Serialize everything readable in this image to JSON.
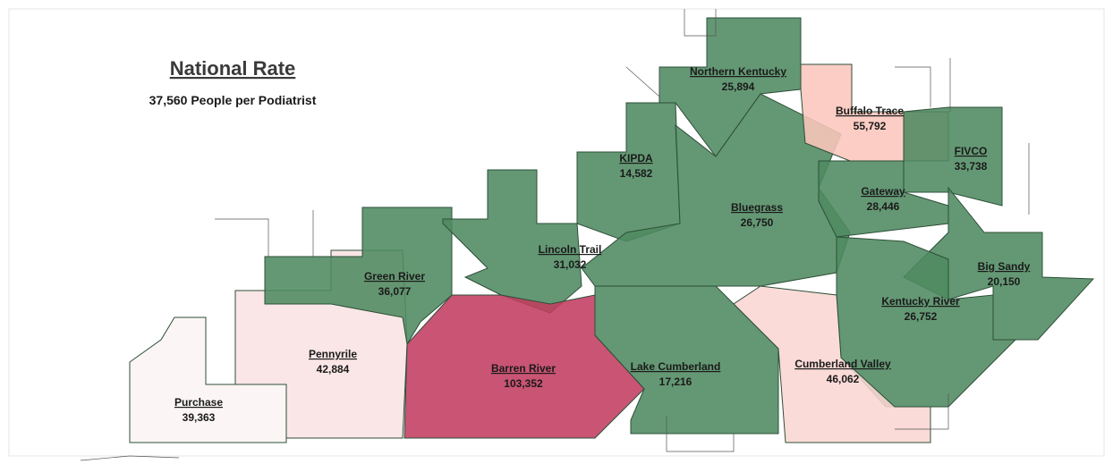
{
  "title": "National Rate",
  "subtitle": "37,560 People per Podiatrist",
  "regions": [
    {
      "name": "Purchase",
      "value": "39,363",
      "color": "#fbf4f4"
    },
    {
      "name": "Pennyrile",
      "value": "42,884",
      "color": "#f9e3e3"
    },
    {
      "name": "Green River",
      "value": "36,077",
      "color": "#4f8a61"
    },
    {
      "name": "Barren River",
      "value": "103,352",
      "color": "#c23c60"
    },
    {
      "name": "Lincoln Trail",
      "value": "31,032",
      "color": "#4f8a61"
    },
    {
      "name": "KIPDA",
      "value": "14,582",
      "color": "#4f8a61"
    },
    {
      "name": "Northern Kentucky",
      "value": "25,894",
      "color": "#4f8a61"
    },
    {
      "name": "Bluegrass",
      "value": "26,750",
      "color": "#4f8a61"
    },
    {
      "name": "Buffalo Trace",
      "value": "55,792",
      "color": "#fac6bc"
    },
    {
      "name": "FIVCO",
      "value": "33,738",
      "color": "#4f8a61"
    },
    {
      "name": "Gateway",
      "value": "28,446",
      "color": "#4f8a61"
    },
    {
      "name": "Big Sandy",
      "value": "20,150",
      "color": "#4f8a61"
    },
    {
      "name": "Kentucky River",
      "value": "26,752",
      "color": "#4f8a61"
    },
    {
      "name": "Cumberland Valley",
      "value": "46,062",
      "color": "#f9d6d2"
    },
    {
      "name": "Lake Cumberland",
      "value": "17,216",
      "color": "#4f8a61"
    }
  ]
}
